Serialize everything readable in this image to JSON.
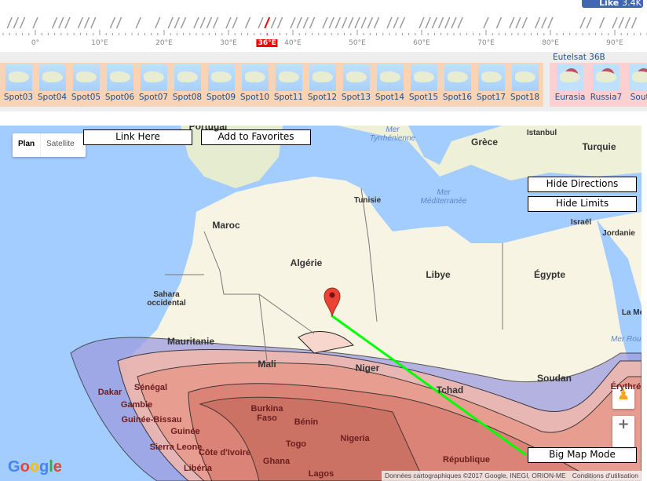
{
  "facebook": {
    "label": "Like",
    "count": "3.4K"
  },
  "ruler": {
    "labels": [
      "0°",
      "10°E",
      "20°E",
      "30°E",
      "36°E",
      "40°E",
      "50°E",
      "60°E",
      "70°E",
      "80°E",
      "90°E"
    ],
    "selected": "36°E"
  },
  "spots": [
    "Spot03",
    "Spot04",
    "Spot05",
    "Spot06",
    "Spot07",
    "Spot08",
    "Spot09",
    "Spot10",
    "Spot11",
    "Spot12",
    "Spot13",
    "Spot14",
    "Spot15",
    "Spot16",
    "Spot17",
    "Spot18"
  ],
  "satellite": {
    "name": "Eutelsat 36B",
    "beams": [
      "Eurasia",
      "Russia7",
      "South"
    ]
  },
  "map": {
    "type_plan": "Plan",
    "type_satellite": "Satellite",
    "link_here": "Link Here",
    "add_favorites": "Add to Favorites",
    "hide_directions": "Hide Directions",
    "hide_limits": "Hide Limits",
    "big_map": "Big Map Mode",
    "labels": {
      "portugal": "Portugal",
      "tyrrh": "Mer\nTyrrhénienne",
      "grece": "Grèce",
      "turquie": "Turquie",
      "istanbul": "Istanbul",
      "tunisie": "Tunisie",
      "med": "Mer\nMéditerranée",
      "maroc": "Maroc",
      "algerie": "Algérie",
      "libye": "Libye",
      "egypte": "Égypte",
      "israel": "Israël",
      "jordanie": "Jordanie",
      "sahara": "Sahara\noccidental",
      "mauritanie": "Mauritanie",
      "mali": "Mali",
      "niger": "Niger",
      "tchad": "Tchad",
      "soudan": "Soudan",
      "senegal": "Sénégal",
      "dakar": "Dakar",
      "gambie": "Gambie",
      "guineebissau": "Guinée-Bissau",
      "guinee": "Guinée",
      "sierra": "Sierra Leone",
      "cote": "Côte d'Ivoire",
      "liberia": "Libéria",
      "burkina": "Burkina\nFaso",
      "ghana": "Ghana",
      "togo": "Togo",
      "benin": "Bénin",
      "nigeria": "Nigeria",
      "lagos": "Lagos",
      "republique": "République",
      "lamer": "La Me",
      "merrouge": "Mer Roug",
      "erythree": "Érythrée"
    },
    "attribution": "Données cartographiques ©2017 Google, INEGI, ORION-ME",
    "terms": "Conditions d'utilisation",
    "logo": "Google"
  },
  "colors": {
    "selected": "#ff0000",
    "sea": "#a3ccff",
    "land": "#f8f4e4",
    "route": "#00ff00",
    "marker": "#ea4335"
  }
}
